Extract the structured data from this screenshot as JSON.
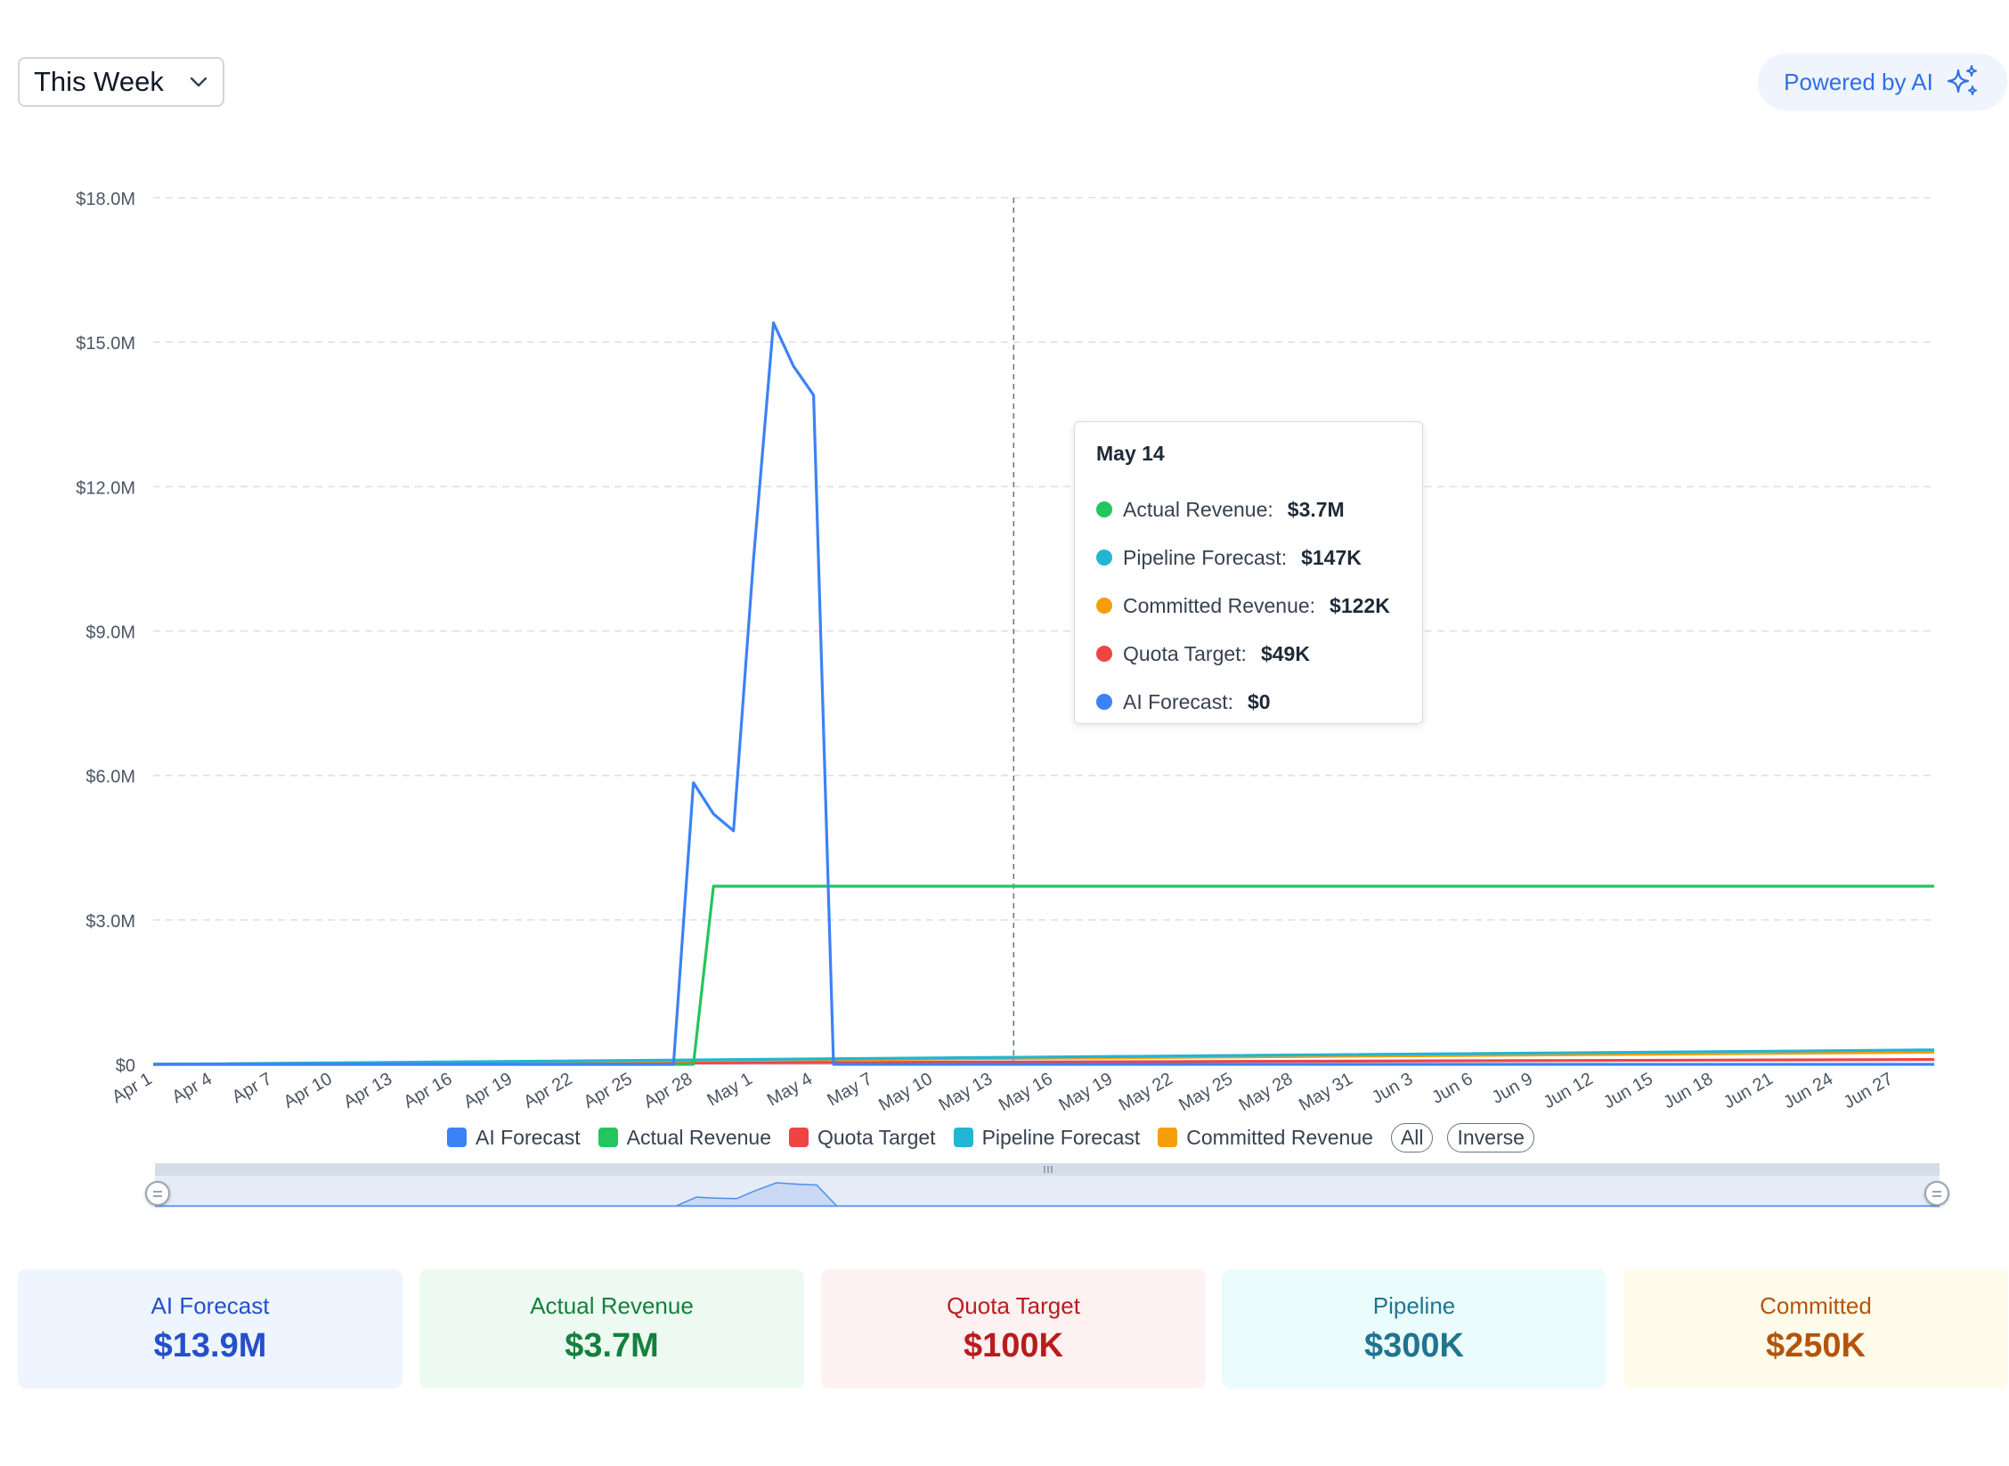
{
  "controls": {
    "period": "This Week",
    "ai_badge": "Powered by AI"
  },
  "colors": {
    "ai_forecast": "#3b82f6",
    "actual_revenue": "#22c55e",
    "quota_target": "#ef4444",
    "pipeline_forecast": "#22b5d4",
    "committed_revenue": "#f59e0b"
  },
  "chart_data": {
    "type": "line",
    "title": "",
    "xlabel": "",
    "ylabel": "",
    "x_start": "2025-04-01",
    "x_end": "2025-06-29",
    "ylim": [
      0,
      18000000
    ],
    "y_ticks": [
      "$0",
      "$3.0M",
      "$6.0M",
      "$9.0M",
      "$12.0M",
      "$15.0M",
      "$18.0M"
    ],
    "x_ticks": [
      "Apr 1",
      "Apr 4",
      "Apr 7",
      "Apr 10",
      "Apr 13",
      "Apr 16",
      "Apr 19",
      "Apr 22",
      "Apr 25",
      "Apr 28",
      "May 1",
      "May 4",
      "May 7",
      "May 10",
      "May 13",
      "May 16",
      "May 19",
      "May 22",
      "May 25",
      "May 28",
      "May 31",
      "Jun 3",
      "Jun 6",
      "Jun 9",
      "Jun 12",
      "Jun 15",
      "Jun 18",
      "Jun 21",
      "Jun 24",
      "Jun 27"
    ],
    "grid": true,
    "legend_position": "bottom",
    "hover_date": "May 14",
    "series": [
      {
        "name": "AI Forecast",
        "key": "ai_forecast",
        "points": [
          [
            "Apr 1",
            0
          ],
          [
            "Apr 27",
            0
          ],
          [
            "Apr 28",
            5850000
          ],
          [
            "Apr 29",
            5200000
          ],
          [
            "Apr 30",
            4850000
          ],
          [
            "May 1",
            10500000
          ],
          [
            "May 2",
            15400000
          ],
          [
            "May 3",
            14500000
          ],
          [
            "May 4",
            13900000
          ],
          [
            "May 5",
            0
          ],
          [
            "Jun 29",
            0
          ]
        ]
      },
      {
        "name": "Actual Revenue",
        "key": "actual_revenue",
        "points": [
          [
            "Apr 1",
            0
          ],
          [
            "Apr 28",
            0
          ],
          [
            "Apr 29",
            3700000
          ],
          [
            "Jun 29",
            3700000
          ]
        ]
      },
      {
        "name": "Quota Target",
        "key": "quota_target",
        "points": [
          [
            "Apr 1",
            0
          ],
          [
            "May 14",
            49000
          ],
          [
            "Jun 29",
            100000
          ]
        ]
      },
      {
        "name": "Pipeline Forecast",
        "key": "pipeline_forecast",
        "points": [
          [
            "Apr 1",
            0
          ],
          [
            "May 14",
            147000
          ],
          [
            "Jun 29",
            300000
          ]
        ]
      },
      {
        "name": "Committed Revenue",
        "key": "committed_revenue",
        "points": [
          [
            "Apr 1",
            0
          ],
          [
            "May 14",
            122000
          ],
          [
            "Jun 29",
            250000
          ]
        ]
      }
    ],
    "legend_buttons": [
      "All",
      "Inverse"
    ]
  },
  "tooltip": {
    "title": "May 14",
    "rows": [
      {
        "label": "Actual Revenue:",
        "value": "$3.7M",
        "color": "#22c55e"
      },
      {
        "label": "Pipeline Forecast:",
        "value": "$147K",
        "color": "#22b5d4"
      },
      {
        "label": "Committed Revenue:",
        "value": "$122K",
        "color": "#f59e0b"
      },
      {
        "label": "Quota Target:",
        "value": "$49K",
        "color": "#ef4444"
      },
      {
        "label": "AI Forecast:",
        "value": "$0",
        "color": "#3b82f6"
      }
    ]
  },
  "summary_cards": [
    {
      "label": "AI Forecast",
      "value": "$13.9M",
      "bg": "#eef5ff",
      "fg": "#2450c8"
    },
    {
      "label": "Actual Revenue",
      "value": "$3.7M",
      "bg": "#edfaf1",
      "fg": "#15803d"
    },
    {
      "label": "Quota Target",
      "value": "$100K",
      "bg": "#fdf1f1",
      "fg": "#b91c1c"
    },
    {
      "label": "Pipeline",
      "value": "$300K",
      "bg": "#ebfcfd",
      "fg": "#1f7590"
    },
    {
      "label": "Committed",
      "value": "$250K",
      "bg": "#fefbea",
      "fg": "#b4540b"
    }
  ]
}
